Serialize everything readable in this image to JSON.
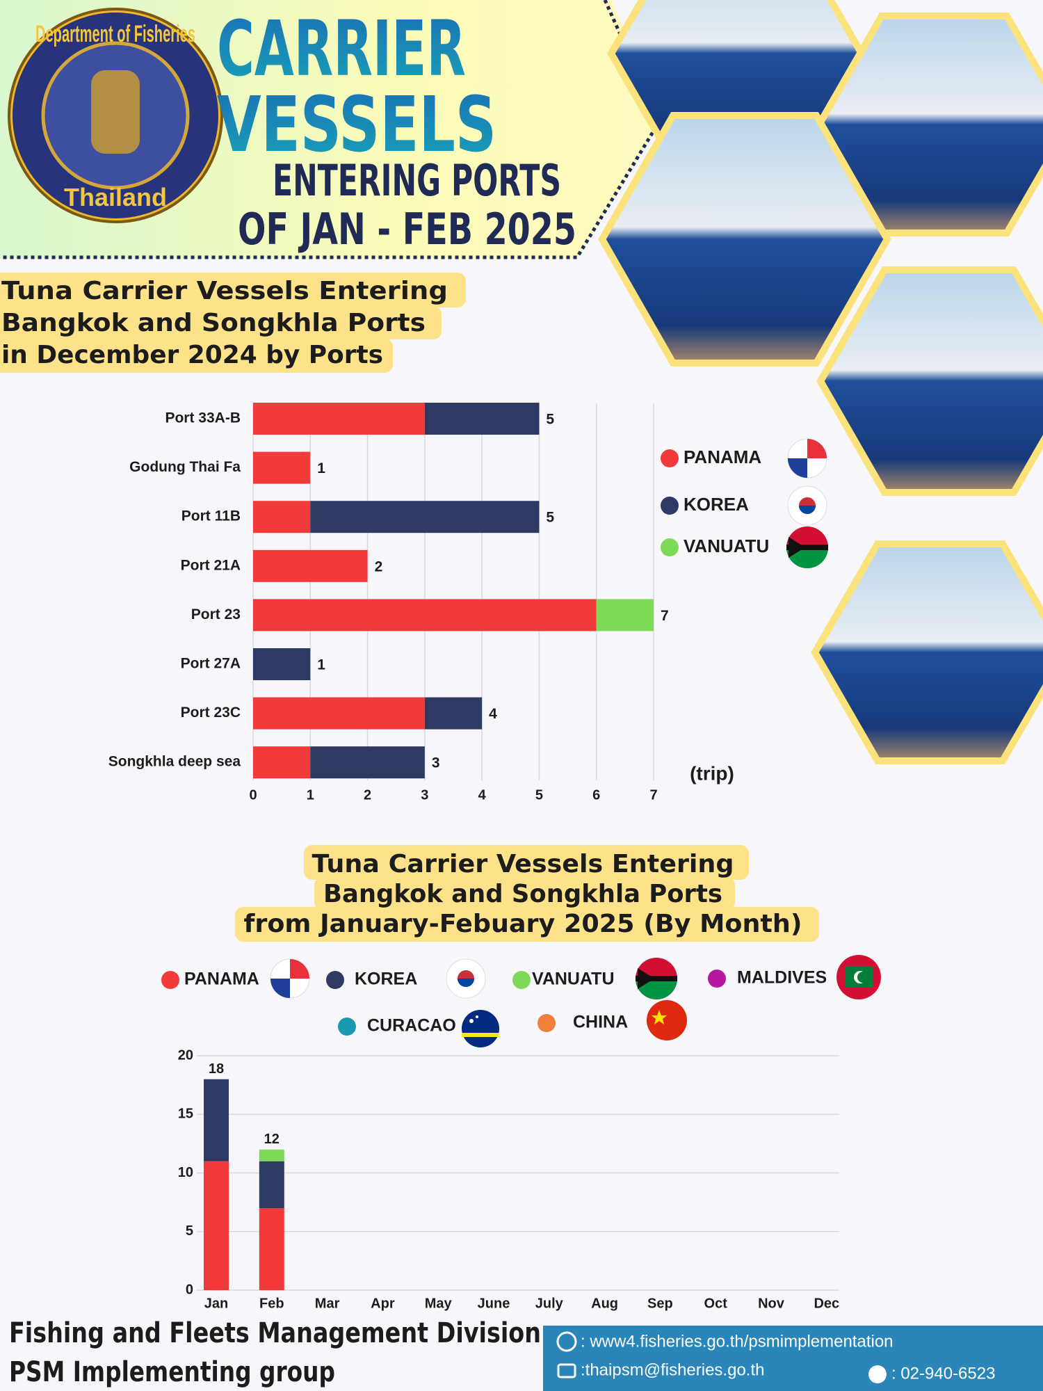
{
  "header": {
    "org": [
      "Department of Fisheries",
      "Thailand"
    ],
    "title_lines": [
      "CARRIER",
      "VESSELS"
    ],
    "subtitle_lines": [
      "ENTERING PORTS",
      "OF JAN - FEB 2025"
    ]
  },
  "chart_data": [
    {
      "type": "bar",
      "orientation": "horizontal",
      "title_lines": [
        "Tuna Carrier Vessels Entering",
        "Bangkok and Songkhla Ports",
        "in December 2024 by Ports"
      ],
      "categories": [
        "Port 33A-B",
        "Godung Thai Fa",
        "Port 11B",
        "Port 21A",
        "Port 23",
        "Port 27A",
        "Port 23C",
        "Songkhla deep sea"
      ],
      "series": [
        {
          "name": "PANAMA",
          "color": "#f23a3a",
          "values": [
            3,
            1,
            1,
            2,
            6,
            0,
            3,
            1
          ]
        },
        {
          "name": "KOREA",
          "color": "#2e3a63",
          "values": [
            2,
            0,
            4,
            0,
            0,
            1,
            1,
            2
          ]
        },
        {
          "name": "VANUATU",
          "color": "#7ed957",
          "values": [
            0,
            0,
            0,
            0,
            1,
            0,
            0,
            0
          ]
        }
      ],
      "totals": [
        5,
        1,
        5,
        2,
        7,
        1,
        4,
        3
      ],
      "xlim": [
        0,
        7
      ],
      "xticks": [
        0,
        1,
        2,
        3,
        4,
        5,
        6,
        7
      ],
      "x_label": "(trip)",
      "grid": true,
      "legend": "right"
    },
    {
      "type": "bar",
      "orientation": "vertical",
      "title_lines": [
        "Tuna Carrier Vessels Entering",
        "Bangkok and Songkhla Ports",
        "from January-Febuary 2025 (By Month)"
      ],
      "categories": [
        "Jan",
        "Feb",
        "Mar",
        "Apr",
        "May",
        "June",
        "July",
        "Aug",
        "Sep",
        "Oct",
        "Nov",
        "Dec"
      ],
      "series": [
        {
          "name": "PANAMA",
          "color": "#f23a3a",
          "values": [
            11,
            7,
            null,
            null,
            null,
            null,
            null,
            null,
            null,
            null,
            null,
            null
          ]
        },
        {
          "name": "KOREA",
          "color": "#2e3a63",
          "values": [
            7,
            4,
            null,
            null,
            null,
            null,
            null,
            null,
            null,
            null,
            null,
            null
          ]
        },
        {
          "name": "VANUATU",
          "color": "#7ed957",
          "values": [
            0,
            1,
            null,
            null,
            null,
            null,
            null,
            null,
            null,
            null,
            null,
            null
          ]
        },
        {
          "name": "MALDIVES",
          "color": "#b5179e",
          "values": [
            0,
            0,
            null,
            null,
            null,
            null,
            null,
            null,
            null,
            null,
            null,
            null
          ]
        },
        {
          "name": "CURACAO",
          "color": "#1a9aae",
          "values": [
            0,
            0,
            null,
            null,
            null,
            null,
            null,
            null,
            null,
            null,
            null,
            null
          ]
        },
        {
          "name": "CHINA",
          "color": "#f07f3c",
          "values": [
            0,
            0,
            null,
            null,
            null,
            null,
            null,
            null,
            null,
            null,
            null,
            null
          ]
        }
      ],
      "totals": [
        18,
        12,
        null,
        null,
        null,
        null,
        null,
        null,
        null,
        null,
        null,
        null
      ],
      "ylim": [
        0,
        20
      ],
      "yticks": [
        0,
        5,
        10,
        15,
        20
      ],
      "grid": true,
      "legend": "top"
    }
  ],
  "footer": {
    "lines": [
      "Fishing and Fleets Management Division",
      "PSM Implementing group"
    ],
    "website": ": www4.fisheries.go.th/psmimplementation",
    "email": ":thaipsm@fisheries.go.th",
    "phone": ": 02-940-6523"
  }
}
